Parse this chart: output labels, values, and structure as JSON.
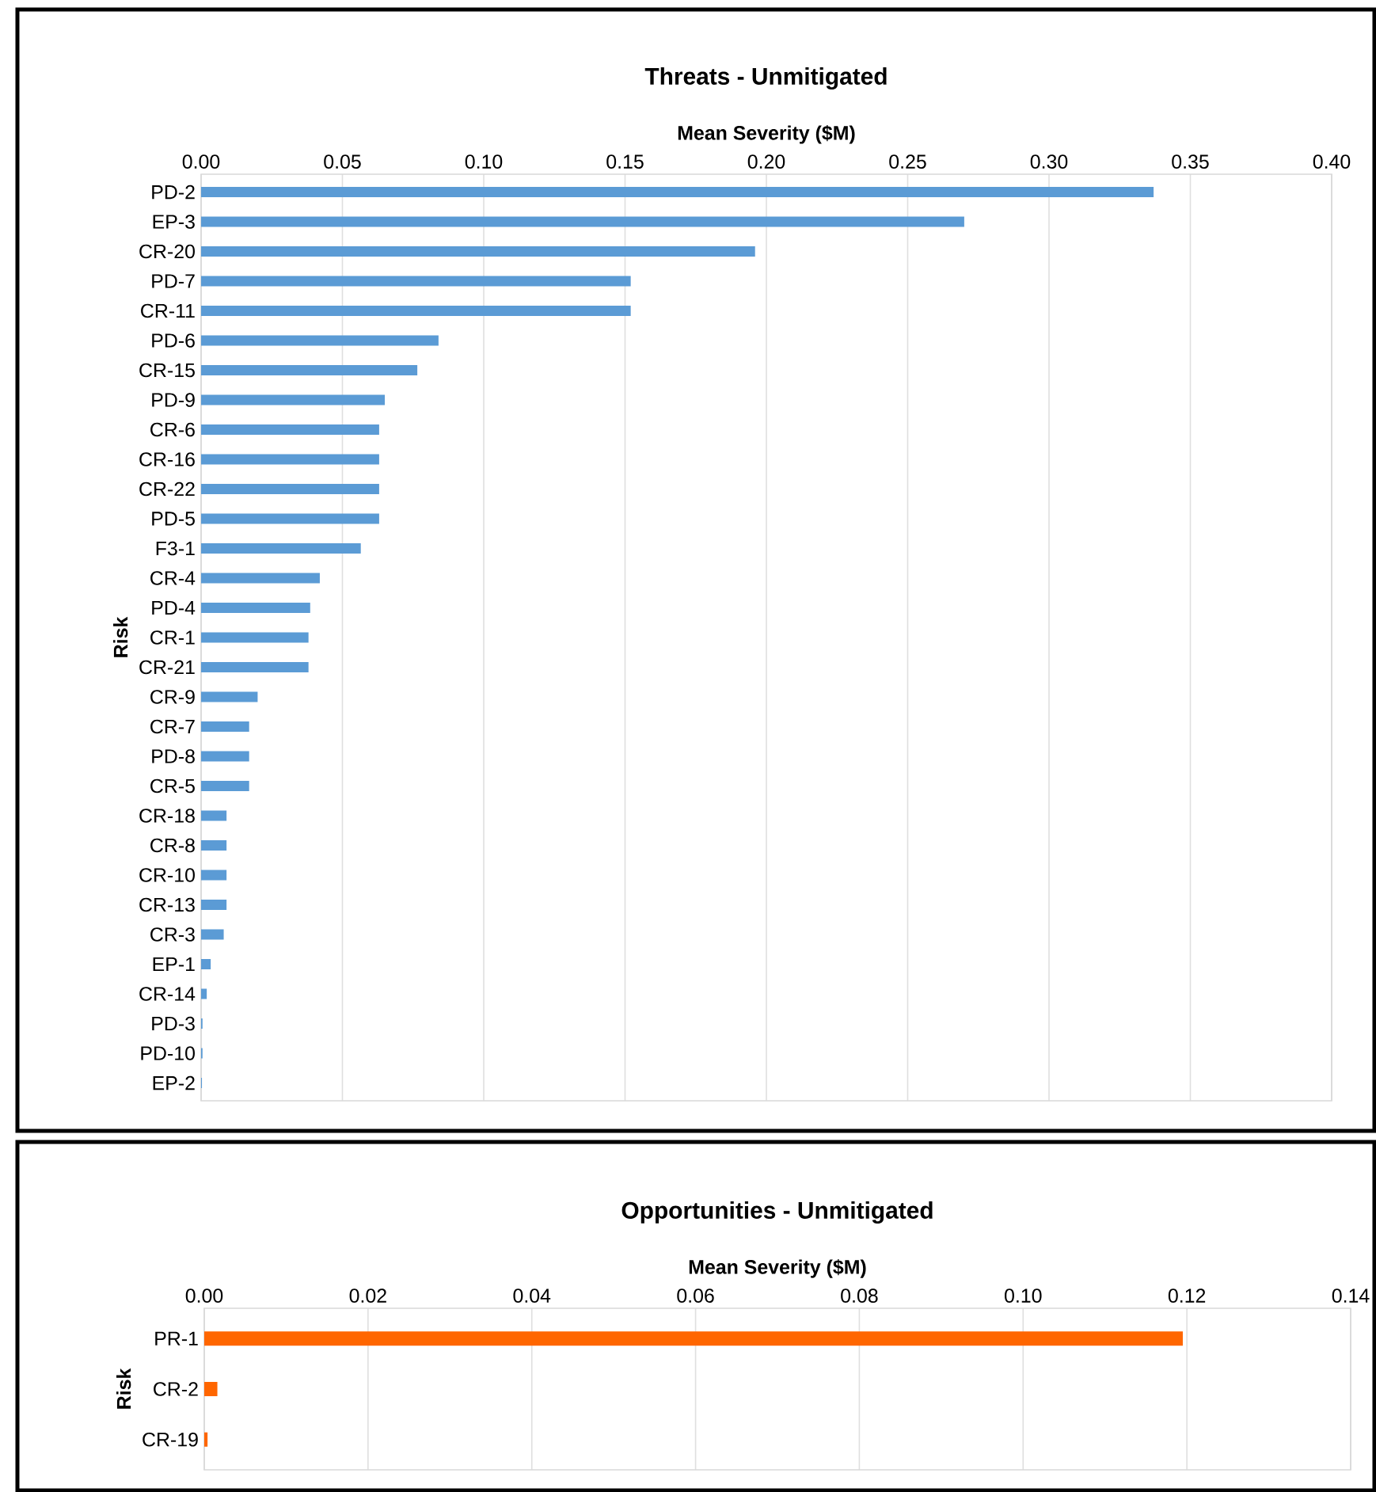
{
  "chart_data": [
    {
      "type": "bar",
      "orientation": "horizontal",
      "title": "Threats - Unmitigated",
      "xlabel": "Mean Severity ($M)",
      "ylabel": "Risk",
      "categories": [
        "PD-2",
        "EP-3",
        "CR-20",
        "PD-7",
        "CR-11",
        "PD-6",
        "CR-15",
        "PD-9",
        "CR-6",
        "CR-16",
        "CR-22",
        "PD-5",
        "F3-1",
        "CR-4",
        "PD-4",
        "CR-1",
        "CR-21",
        "CR-9",
        "CR-7",
        "PD-8",
        "CR-5",
        "CR-18",
        "CR-8",
        "CR-10",
        "CR-13",
        "CR-3",
        "EP-1",
        "CR-14",
        "PD-3",
        "PD-10",
        "EP-2"
      ],
      "values": [
        0.337,
        0.27,
        0.196,
        0.152,
        0.152,
        0.084,
        0.0765,
        0.065,
        0.063,
        0.063,
        0.063,
        0.063,
        0.0565,
        0.042,
        0.0386,
        0.038,
        0.038,
        0.02,
        0.017,
        0.017,
        0.017,
        0.009,
        0.009,
        0.009,
        0.009,
        0.008,
        0.0034,
        0.002,
        0.0005,
        0.0005,
        0.0003
      ],
      "color": "#5b9bd5",
      "xlim": [
        0,
        0.4
      ],
      "xticks": [
        {
          "value": 0,
          "label": "0.00"
        },
        {
          "value": 0.05,
          "label": "0.05"
        },
        {
          "value": 0.1,
          "label": "0.10"
        },
        {
          "value": 0.15,
          "label": "0.15"
        },
        {
          "value": 0.2,
          "label": "0.20"
        },
        {
          "value": 0.25,
          "label": "0.25"
        },
        {
          "value": 0.3,
          "label": "0.30"
        },
        {
          "value": 0.35,
          "label": "0.35"
        },
        {
          "value": 0.4,
          "label": "0.40"
        }
      ],
      "grid": "x"
    },
    {
      "type": "bar",
      "orientation": "horizontal",
      "title": "Opportunities - Unmitigated",
      "xlabel": "Mean Severity ($M)",
      "ylabel": "Risk",
      "categories": [
        "PR-1",
        "CR-2",
        "CR-19"
      ],
      "values": [
        0.1195,
        0.0016,
        0.0004
      ],
      "color": "#ff6600",
      "xlim": [
        0,
        0.14
      ],
      "xticks": [
        {
          "value": 0,
          "label": "0.00"
        },
        {
          "value": 0.02,
          "label": "0.02"
        },
        {
          "value": 0.04,
          "label": "0.04"
        },
        {
          "value": 0.06,
          "label": "0.06"
        },
        {
          "value": 0.08,
          "label": "0.08"
        },
        {
          "value": 0.1,
          "label": "0.10"
        },
        {
          "value": 0.12,
          "label": "0.12"
        },
        {
          "value": 0.14,
          "label": "0.14"
        }
      ],
      "grid": "x"
    }
  ]
}
